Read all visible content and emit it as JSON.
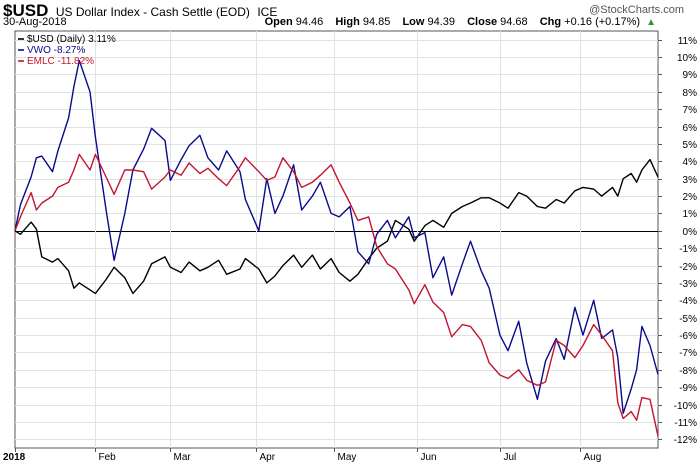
{
  "header": {
    "symbol": "$USD",
    "description": "US Dollar Index - Cash Settle (EOD)",
    "exchange": "ICE",
    "date": "30-Aug-2018",
    "watermark": "@StockCharts.com",
    "open_label": "Open",
    "open": "94.46",
    "high_label": "High",
    "high": "94.85",
    "low_label": "Low",
    "low": "94.39",
    "close_label": "Close",
    "close": "94.68",
    "chg_label": "Chg",
    "chg": "+0.16 (+0.17%)"
  },
  "colors": {
    "usd": "#000000",
    "vwo": "#0a0a8c",
    "emlc": "#c41530",
    "grid": "#e2e2e2",
    "zero": "#000000"
  },
  "chart_data": {
    "type": "line",
    "x_start": "2018-01-02",
    "x_end": "2018-08-30",
    "x_tick_labels": [
      "2018",
      "Feb",
      "Mar",
      "Apr",
      "May",
      "Jun",
      "Jul",
      "Aug"
    ],
    "x_tick_dates": [
      "2018-01-02",
      "2018-02-01",
      "2018-03-01",
      "2018-04-02",
      "2018-05-01",
      "2018-06-01",
      "2018-07-02",
      "2018-08-01"
    ],
    "ylim": [
      -12.5,
      11.5
    ],
    "y_ticks": [
      11,
      10,
      9,
      8,
      7,
      6,
      5,
      4,
      3,
      2,
      1,
      0,
      -1,
      -2,
      -3,
      -4,
      -5,
      -6,
      -7,
      -8,
      -9,
      -10,
      -11,
      -12
    ],
    "y_tick_labels": [
      "11%",
      "10%",
      "9%",
      "8%",
      "7%",
      "6%",
      "5%",
      "4%",
      "3%",
      "2%",
      "1%",
      "0%",
      "-1%",
      "-2%",
      "-3%",
      "-4%",
      "-5%",
      "-6%",
      "-7%",
      "-8%",
      "-9%",
      "-10%",
      "-11%",
      "-12%"
    ],
    "grid": true,
    "legend_position": "top-left",
    "series": [
      {
        "name": "$USD (Daily) 3.11%",
        "color_key": "usd",
        "points": [
          [
            "2018-01-02",
            0
          ],
          [
            "2018-01-04",
            -0.2
          ],
          [
            "2018-01-08",
            0.5
          ],
          [
            "2018-01-10",
            0.1
          ],
          [
            "2018-01-12",
            -1.5
          ],
          [
            "2018-01-16",
            -1.8
          ],
          [
            "2018-01-18",
            -1.6
          ],
          [
            "2018-01-22",
            -2.3
          ],
          [
            "2018-01-24",
            -3.3
          ],
          [
            "2018-01-26",
            -3.0
          ],
          [
            "2018-01-30",
            -3.4
          ],
          [
            "2018-02-01",
            -3.6
          ],
          [
            "2018-02-05",
            -2.8
          ],
          [
            "2018-02-08",
            -2.1
          ],
          [
            "2018-02-12",
            -2.7
          ],
          [
            "2018-02-15",
            -3.6
          ],
          [
            "2018-02-19",
            -2.9
          ],
          [
            "2018-02-22",
            -1.9
          ],
          [
            "2018-02-27",
            -1.5
          ],
          [
            "2018-03-01",
            -2.1
          ],
          [
            "2018-03-05",
            -2.4
          ],
          [
            "2018-03-08",
            -1.8
          ],
          [
            "2018-03-12",
            -2.3
          ],
          [
            "2018-03-15",
            -2.1
          ],
          [
            "2018-03-19",
            -1.7
          ],
          [
            "2018-03-22",
            -2.5
          ],
          [
            "2018-03-27",
            -2.2
          ],
          [
            "2018-03-29",
            -1.6
          ],
          [
            "2018-04-03",
            -2.2
          ],
          [
            "2018-04-06",
            -3.0
          ],
          [
            "2018-04-09",
            -2.6
          ],
          [
            "2018-04-12",
            -2.0
          ],
          [
            "2018-04-16",
            -1.4
          ],
          [
            "2018-04-19",
            -2.1
          ],
          [
            "2018-04-23",
            -1.4
          ],
          [
            "2018-04-26",
            -2.2
          ],
          [
            "2018-04-30",
            -1.6
          ],
          [
            "2018-05-03",
            -2.4
          ],
          [
            "2018-05-07",
            -2.9
          ],
          [
            "2018-05-10",
            -2.5
          ],
          [
            "2018-05-14",
            -1.6
          ],
          [
            "2018-05-17",
            -1.0
          ],
          [
            "2018-05-21",
            -0.6
          ],
          [
            "2018-05-24",
            0.6
          ],
          [
            "2018-05-29",
            0.1
          ],
          [
            "2018-05-31",
            -0.6
          ],
          [
            "2018-06-04",
            0.3
          ],
          [
            "2018-06-07",
            0.6
          ],
          [
            "2018-06-11",
            0.2
          ],
          [
            "2018-06-14",
            1.0
          ],
          [
            "2018-06-18",
            1.4
          ],
          [
            "2018-06-21",
            1.6
          ],
          [
            "2018-06-25",
            1.9
          ],
          [
            "2018-06-28",
            1.9
          ],
          [
            "2018-07-02",
            1.6
          ],
          [
            "2018-07-05",
            1.3
          ],
          [
            "2018-07-09",
            2.2
          ],
          [
            "2018-07-12",
            2.0
          ],
          [
            "2018-07-16",
            1.4
          ],
          [
            "2018-07-19",
            1.3
          ],
          [
            "2018-07-23",
            1.8
          ],
          [
            "2018-07-26",
            1.6
          ],
          [
            "2018-07-30",
            2.3
          ],
          [
            "2018-08-02",
            2.5
          ],
          [
            "2018-08-06",
            2.4
          ],
          [
            "2018-08-09",
            2.0
          ],
          [
            "2018-08-13",
            2.5
          ],
          [
            "2018-08-15",
            2.0
          ],
          [
            "2018-08-17",
            3.0
          ],
          [
            "2018-08-20",
            3.3
          ],
          [
            "2018-08-22",
            2.8
          ],
          [
            "2018-08-24",
            3.5
          ],
          [
            "2018-08-27",
            4.1
          ],
          [
            "2018-08-30",
            3.1
          ]
        ]
      },
      {
        "name": "VWO -8.27%",
        "color_key": "vwo",
        "points": [
          [
            "2018-01-02",
            0
          ],
          [
            "2018-01-04",
            1.5
          ],
          [
            "2018-01-08",
            3.1
          ],
          [
            "2018-01-10",
            4.2
          ],
          [
            "2018-01-12",
            4.3
          ],
          [
            "2018-01-16",
            3.4
          ],
          [
            "2018-01-18",
            4.6
          ],
          [
            "2018-01-22",
            6.5
          ],
          [
            "2018-01-24",
            8.3
          ],
          [
            "2018-01-26",
            9.8
          ],
          [
            "2018-01-30",
            8.0
          ],
          [
            "2018-02-01",
            5.4
          ],
          [
            "2018-02-05",
            1.2
          ],
          [
            "2018-02-08",
            -1.7
          ],
          [
            "2018-02-12",
            1.0
          ],
          [
            "2018-02-15",
            3.5
          ],
          [
            "2018-02-19",
            4.7
          ],
          [
            "2018-02-22",
            5.9
          ],
          [
            "2018-02-27",
            5.2
          ],
          [
            "2018-03-01",
            2.9
          ],
          [
            "2018-03-05",
            4.1
          ],
          [
            "2018-03-08",
            4.9
          ],
          [
            "2018-03-12",
            5.5
          ],
          [
            "2018-03-15",
            4.2
          ],
          [
            "2018-03-19",
            3.5
          ],
          [
            "2018-03-22",
            4.6
          ],
          [
            "2018-03-27",
            3.4
          ],
          [
            "2018-03-29",
            1.8
          ],
          [
            "2018-04-03",
            0.0
          ],
          [
            "2018-04-06",
            3.0
          ],
          [
            "2018-04-09",
            1.0
          ],
          [
            "2018-04-12",
            2.0
          ],
          [
            "2018-04-16",
            3.8
          ],
          [
            "2018-04-19",
            1.2
          ],
          [
            "2018-04-23",
            2.0
          ],
          [
            "2018-04-26",
            2.8
          ],
          [
            "2018-04-30",
            1.0
          ],
          [
            "2018-05-03",
            0.8
          ],
          [
            "2018-05-07",
            1.4
          ],
          [
            "2018-05-10",
            -1.2
          ],
          [
            "2018-05-14",
            -1.9
          ],
          [
            "2018-05-17",
            -0.2
          ],
          [
            "2018-05-21",
            0.6
          ],
          [
            "2018-05-24",
            -0.4
          ],
          [
            "2018-05-29",
            0.8
          ],
          [
            "2018-05-31",
            -0.4
          ],
          [
            "2018-06-04",
            -0.1
          ],
          [
            "2018-06-07",
            -2.7
          ],
          [
            "2018-06-11",
            -1.5
          ],
          [
            "2018-06-14",
            -3.7
          ],
          [
            "2018-06-18",
            -1.9
          ],
          [
            "2018-06-21",
            -0.6
          ],
          [
            "2018-06-25",
            -2.3
          ],
          [
            "2018-06-28",
            -3.3
          ],
          [
            "2018-07-02",
            -6.0
          ],
          [
            "2018-07-05",
            -6.9
          ],
          [
            "2018-07-09",
            -5.2
          ],
          [
            "2018-07-12",
            -7.6
          ],
          [
            "2018-07-16",
            -9.7
          ],
          [
            "2018-07-19",
            -7.5
          ],
          [
            "2018-07-23",
            -6.2
          ],
          [
            "2018-07-26",
            -7.4
          ],
          [
            "2018-07-30",
            -4.4
          ],
          [
            "2018-08-02",
            -6.0
          ],
          [
            "2018-08-06",
            -4.0
          ],
          [
            "2018-08-09",
            -6.2
          ],
          [
            "2018-08-13",
            -5.7
          ],
          [
            "2018-08-15",
            -7.3
          ],
          [
            "2018-08-17",
            -10.5
          ],
          [
            "2018-08-20",
            -9.1
          ],
          [
            "2018-08-22",
            -8.0
          ],
          [
            "2018-08-24",
            -5.5
          ],
          [
            "2018-08-27",
            -6.6
          ],
          [
            "2018-08-30",
            -8.27
          ]
        ]
      },
      {
        "name": "EMLC -11.82%",
        "color_key": "emlc",
        "points": [
          [
            "2018-01-02",
            0
          ],
          [
            "2018-01-04",
            0.8
          ],
          [
            "2018-01-08",
            2.2
          ],
          [
            "2018-01-10",
            1.2
          ],
          [
            "2018-01-12",
            1.6
          ],
          [
            "2018-01-16",
            2.0
          ],
          [
            "2018-01-18",
            2.5
          ],
          [
            "2018-01-22",
            2.8
          ],
          [
            "2018-01-24",
            3.5
          ],
          [
            "2018-01-26",
            4.4
          ],
          [
            "2018-01-30",
            3.5
          ],
          [
            "2018-02-01",
            4.4
          ],
          [
            "2018-02-05",
            3.1
          ],
          [
            "2018-02-08",
            2.1
          ],
          [
            "2018-02-12",
            3.5
          ],
          [
            "2018-02-15",
            3.5
          ],
          [
            "2018-02-19",
            3.4
          ],
          [
            "2018-02-22",
            2.4
          ],
          [
            "2018-02-27",
            3.1
          ],
          [
            "2018-03-01",
            3.5
          ],
          [
            "2018-03-05",
            3.2
          ],
          [
            "2018-03-08",
            3.9
          ],
          [
            "2018-03-12",
            3.3
          ],
          [
            "2018-03-15",
            3.6
          ],
          [
            "2018-03-19",
            3.0
          ],
          [
            "2018-03-22",
            2.6
          ],
          [
            "2018-03-27",
            3.7
          ],
          [
            "2018-03-29",
            4.2
          ],
          [
            "2018-04-03",
            3.4
          ],
          [
            "2018-04-06",
            2.9
          ],
          [
            "2018-04-09",
            3.1
          ],
          [
            "2018-04-12",
            4.2
          ],
          [
            "2018-04-16",
            3.4
          ],
          [
            "2018-04-19",
            2.5
          ],
          [
            "2018-04-23",
            2.8
          ],
          [
            "2018-04-26",
            3.2
          ],
          [
            "2018-04-30",
            3.8
          ],
          [
            "2018-05-03",
            2.8
          ],
          [
            "2018-05-07",
            1.6
          ],
          [
            "2018-05-10",
            0.6
          ],
          [
            "2018-05-14",
            0.8
          ],
          [
            "2018-05-17",
            -0.9
          ],
          [
            "2018-05-21",
            -1.9
          ],
          [
            "2018-05-24",
            -2.2
          ],
          [
            "2018-05-29",
            -3.4
          ],
          [
            "2018-05-31",
            -4.2
          ],
          [
            "2018-06-04",
            -3.1
          ],
          [
            "2018-06-07",
            -4.1
          ],
          [
            "2018-06-11",
            -4.7
          ],
          [
            "2018-06-14",
            -6.1
          ],
          [
            "2018-06-18",
            -5.4
          ],
          [
            "2018-06-21",
            -5.5
          ],
          [
            "2018-06-25",
            -6.3
          ],
          [
            "2018-06-28",
            -7.6
          ],
          [
            "2018-07-02",
            -8.3
          ],
          [
            "2018-07-05",
            -8.5
          ],
          [
            "2018-07-09",
            -8.0
          ],
          [
            "2018-07-12",
            -8.6
          ],
          [
            "2018-07-16",
            -8.9
          ],
          [
            "2018-07-19",
            -8.7
          ],
          [
            "2018-07-23",
            -6.3
          ],
          [
            "2018-07-26",
            -6.6
          ],
          [
            "2018-07-30",
            -7.3
          ],
          [
            "2018-08-02",
            -6.6
          ],
          [
            "2018-08-06",
            -5.4
          ],
          [
            "2018-08-09",
            -6.0
          ],
          [
            "2018-08-13",
            -6.9
          ],
          [
            "2018-08-15",
            -9.9
          ],
          [
            "2018-08-17",
            -10.8
          ],
          [
            "2018-08-20",
            -10.4
          ],
          [
            "2018-08-22",
            -10.9
          ],
          [
            "2018-08-24",
            -9.6
          ],
          [
            "2018-08-27",
            -9.7
          ],
          [
            "2018-08-30",
            -11.82
          ]
        ]
      }
    ]
  }
}
